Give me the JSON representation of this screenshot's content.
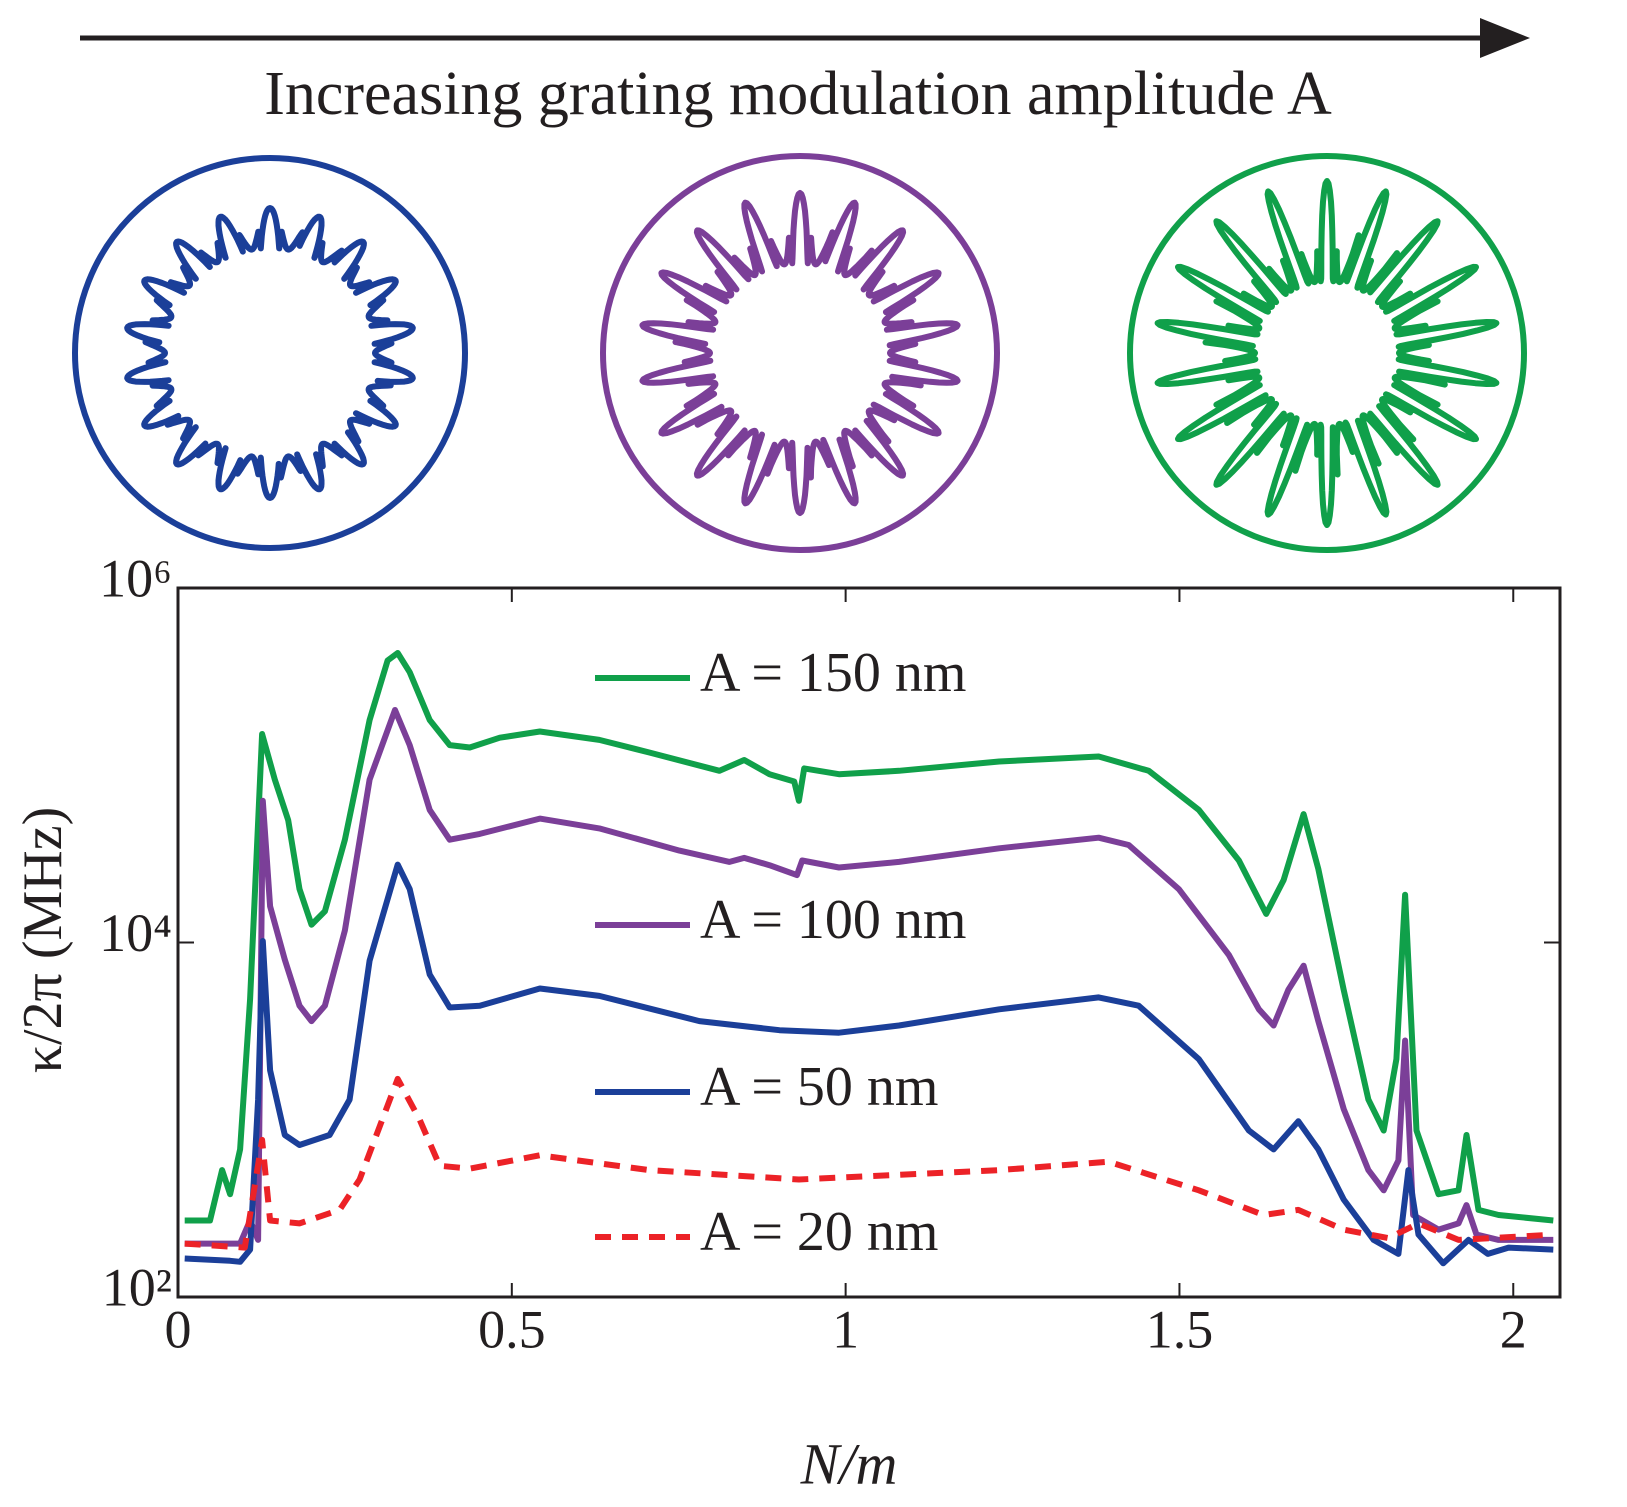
{
  "chart_data": {
    "type": "line",
    "annotation": "Increasing grating modulation amplitude A",
    "xlabel": "N/m",
    "ylabel": "κ/2π (MHz)",
    "xlim": [
      0,
      2.07
    ],
    "ylim": [
      100,
      1000000
    ],
    "yscale": "log",
    "xticks": [
      0,
      0.5,
      1,
      1.5,
      2
    ],
    "yticks": [
      {
        "value": 100,
        "label": "10²"
      },
      {
        "value": 10000,
        "label": "10⁴"
      },
      {
        "value": 1000000,
        "label": "10⁶"
      }
    ],
    "grid": false,
    "legend": "center",
    "series": [
      {
        "name": "A = 150 nm",
        "color": "#10a04a",
        "line_style": "solid",
        "x": [
          0.01,
          0.048,
          0.066,
          0.078,
          0.093,
          0.108,
          0.126,
          0.145,
          0.165,
          0.182,
          0.2,
          0.22,
          0.25,
          0.287,
          0.314,
          0.329,
          0.347,
          0.377,
          0.407,
          0.437,
          0.482,
          0.542,
          0.631,
          0.706,
          0.811,
          0.848,
          0.886,
          0.923,
          0.93,
          0.938,
          0.99,
          1.08,
          1.23,
          1.379,
          1.454,
          1.529,
          1.589,
          1.63,
          1.656,
          1.686,
          1.708,
          1.746,
          1.783,
          1.806,
          1.825,
          1.838,
          1.855,
          1.888,
          1.918,
          1.93,
          1.948,
          1.978,
          2.06
        ],
        "values": [
          270,
          270,
          520,
          380,
          680,
          4800,
          150000,
          83000,
          49000,
          20000,
          12600,
          15000,
          38000,
          180000,
          390000,
          430000,
          335000,
          180000,
          130000,
          126000,
          143000,
          155000,
          139000,
          118000,
          93000,
          107000,
          89000,
          81000,
          63000,
          96000,
          89000,
          93000,
          105000,
          112000,
          93000,
          56000,
          29000,
          14500,
          22500,
          53000,
          26000,
          5400,
          1300,
          870,
          2200,
          18600,
          870,
          380,
          400,
          820,
          310,
          290,
          270
        ]
      },
      {
        "name": "A = 100 nm",
        "color": "#7b3f98",
        "line_style": "solid",
        "x": [
          0.01,
          0.093,
          0.108,
          0.12,
          0.127,
          0.138,
          0.16,
          0.182,
          0.2,
          0.22,
          0.25,
          0.287,
          0.325,
          0.347,
          0.377,
          0.407,
          0.452,
          0.542,
          0.631,
          0.751,
          0.826,
          0.848,
          0.886,
          0.927,
          0.935,
          0.99,
          1.08,
          1.23,
          1.379,
          1.424,
          1.499,
          1.574,
          1.619,
          1.641,
          1.663,
          1.686,
          1.708,
          1.746,
          1.783,
          1.806,
          1.828,
          1.838,
          1.85,
          1.888,
          1.918,
          1.93,
          1.945,
          1.978,
          2.06
        ],
        "values": [
          200,
          200,
          270,
          210,
          63000,
          16000,
          8000,
          4400,
          3600,
          4400,
          11700,
          83000,
          205000,
          130000,
          56000,
          38000,
          41000,
          50000,
          44000,
          33000,
          28500,
          30000,
          27300,
          24000,
          29000,
          26500,
          28500,
          34000,
          39000,
          35500,
          20000,
          8500,
          4200,
          3400,
          5400,
          7400,
          3600,
          1150,
          520,
          400,
          590,
          2800,
          290,
          240,
          260,
          330,
          225,
          210,
          210
        ]
      },
      {
        "name": "A = 50 nm",
        "color": "#1b3f99",
        "line_style": "solid",
        "x": [
          0.01,
          0.078,
          0.093,
          0.108,
          0.12,
          0.127,
          0.138,
          0.16,
          0.182,
          0.227,
          0.257,
          0.287,
          0.329,
          0.347,
          0.377,
          0.407,
          0.452,
          0.542,
          0.631,
          0.781,
          0.901,
          0.99,
          1.08,
          1.23,
          1.379,
          1.439,
          1.529,
          1.604,
          1.641,
          1.678,
          1.708,
          1.746,
          1.791,
          1.828,
          1.843,
          1.858,
          1.895,
          1.933,
          1.962,
          1.993,
          2.06
        ],
        "values": [
          165,
          160,
          158,
          185,
          1300,
          10200,
          1900,
          820,
          720,
          820,
          1300,
          7900,
          27500,
          20000,
          6600,
          4300,
          4400,
          5500,
          5000,
          3600,
          3200,
          3100,
          3400,
          4200,
          4900,
          4400,
          2200,
          870,
          680,
          980,
          680,
          355,
          210,
          175,
          520,
          225,
          155,
          210,
          175,
          190,
          185
        ]
      },
      {
        "name": "A = 20 nm",
        "color": "#ec2227",
        "line_style": "dashed",
        "x": [
          0.01,
          0.1,
          0.126,
          0.138,
          0.182,
          0.242,
          0.272,
          0.329,
          0.362,
          0.392,
          0.437,
          0.542,
          0.706,
          0.93,
          1.23,
          1.394,
          1.529,
          1.626,
          1.678,
          1.746,
          1.813,
          1.858,
          1.918,
          2.06
        ],
        "values": [
          200,
          190,
          770,
          270,
          260,
          310,
          460,
          1700,
          1000,
          550,
          530,
          630,
          520,
          460,
          520,
          580,
          400,
          290,
          310,
          240,
          215,
          260,
          210,
          225
        ]
      }
    ]
  }
}
